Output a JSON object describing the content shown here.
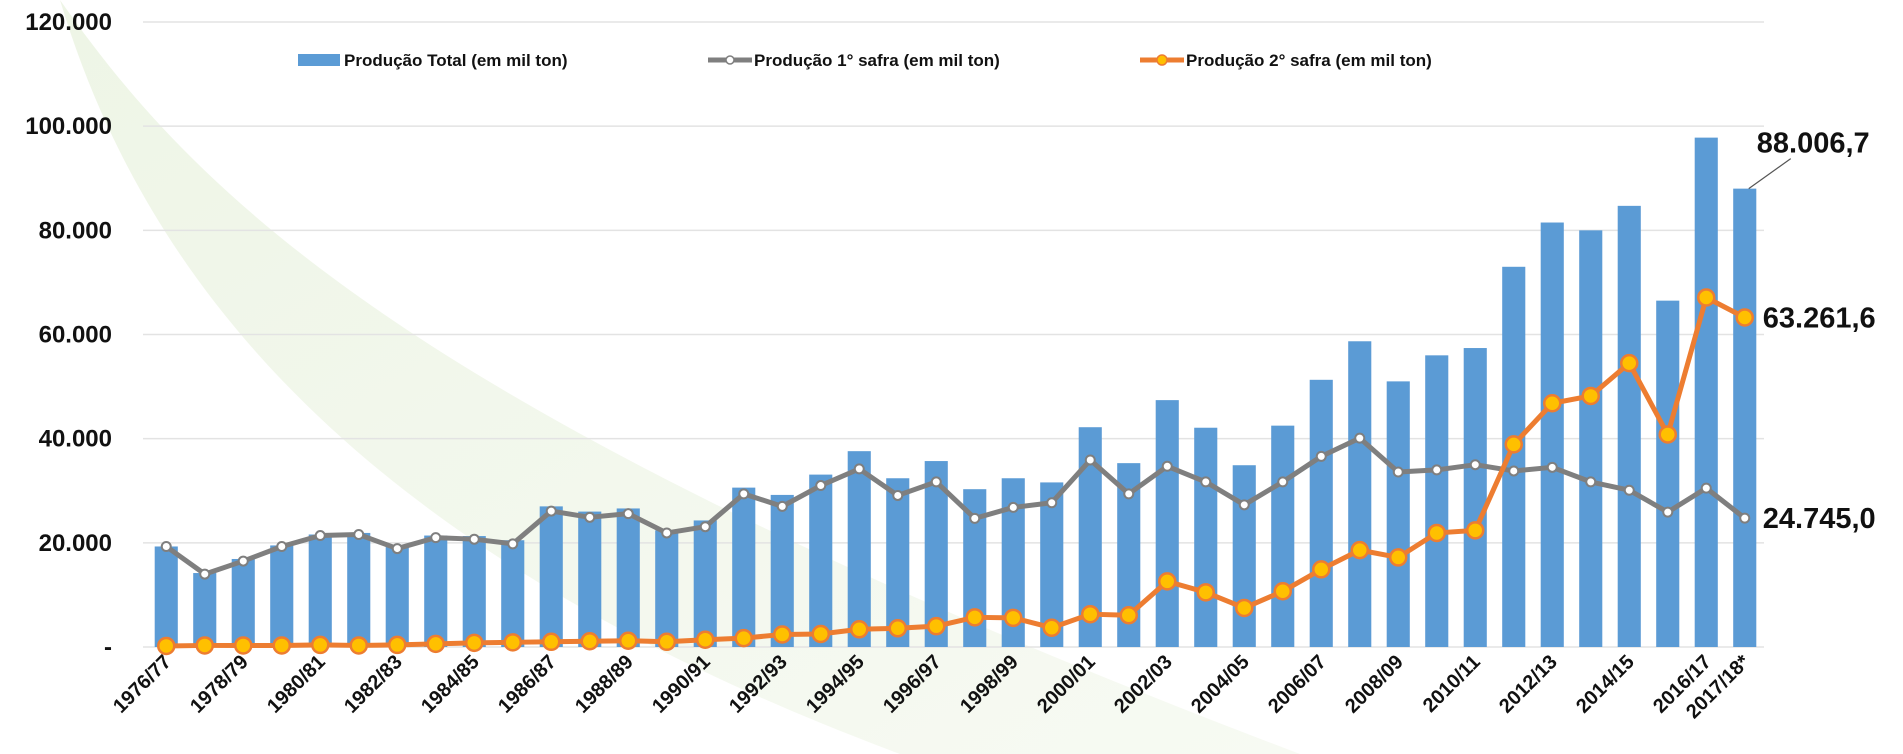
{
  "chart_data": {
    "type": "bar",
    "categories": [
      "1976/77",
      null,
      "1978/79",
      null,
      "1980/81",
      null,
      "1982/83",
      null,
      "1984/85",
      null,
      "1986/87",
      null,
      "1988/89",
      null,
      "1990/91",
      null,
      "1992/93",
      null,
      "1994/95",
      null,
      "1996/97",
      null,
      "1998/99",
      null,
      "2000/01",
      null,
      "2002/03",
      null,
      "2004/05",
      null,
      "2006/07",
      null,
      "2008/09",
      null,
      "2010/11",
      null,
      "2012/13",
      null,
      "2014/15",
      null,
      "2016/17",
      "2017/18*"
    ],
    "series": [
      {
        "name": "Produção Total (em mil ton)",
        "type": "bar",
        "color": "#5b9bd5",
        "values": [
          19300,
          14200,
          16900,
          19500,
          21600,
          21900,
          19200,
          21400,
          21300,
          20500,
          27000,
          26000,
          26600,
          22400,
          24300,
          30600,
          29200,
          33100,
          37600,
          32400,
          35700,
          30300,
          32400,
          31600,
          42200,
          35300,
          47400,
          42100,
          34900,
          42500,
          51300,
          58700,
          51000,
          56000,
          57400,
          73000,
          81500,
          80000,
          84700,
          66500,
          97800,
          88006.7
        ],
        "value_labels": [
          null,
          null,
          null,
          null,
          null,
          null,
          null,
          null,
          null,
          null,
          null,
          null,
          null,
          null,
          null,
          null,
          null,
          null,
          null,
          null,
          null,
          null,
          null,
          null,
          null,
          null,
          null,
          null,
          null,
          null,
          null,
          null,
          null,
          null,
          null,
          null,
          null,
          null,
          null,
          null,
          null,
          "88.006,7"
        ]
      },
      {
        "name": "Produção 1° safra (em mil ton)",
        "type": "line",
        "color": "#7f7f7f",
        "values": [
          19300,
          14000,
          16500,
          19300,
          21400,
          21600,
          18900,
          21000,
          20700,
          19800,
          26100,
          24900,
          25600,
          21900,
          23100,
          29400,
          27000,
          31000,
          34200,
          29100,
          31700,
          24700,
          26800,
          27700,
          35900,
          29400,
          34700,
          31700,
          27300,
          31700,
          36600,
          40100,
          33600,
          34000,
          35000,
          33800,
          34500,
          31700,
          30100,
          25900,
          30500,
          24745
        ],
        "value_labels": [
          null,
          null,
          null,
          null,
          null,
          null,
          null,
          null,
          null,
          null,
          null,
          null,
          null,
          null,
          null,
          null,
          null,
          null,
          null,
          null,
          null,
          null,
          null,
          null,
          null,
          null,
          null,
          null,
          null,
          null,
          null,
          null,
          null,
          null,
          null,
          null,
          null,
          null,
          null,
          null,
          null,
          "24.745,0"
        ]
      },
      {
        "name": "Produção 2° safra (em mil ton)",
        "type": "line",
        "color": "#ed7d31",
        "values": [
          200,
          300,
          300,
          300,
          400,
          300,
          400,
          600,
          800,
          900,
          1000,
          1100,
          1200,
          1000,
          1400,
          1700,
          2400,
          2500,
          3400,
          3600,
          4000,
          5700,
          5600,
          3700,
          6300,
          6100,
          12600,
          10500,
          7500,
          10700,
          14900,
          18600,
          17200,
          21900,
          22400,
          38900,
          46800,
          48200,
          54500,
          40800,
          67100,
          63261.6
        ],
        "value_labels": [
          null,
          null,
          null,
          null,
          null,
          null,
          null,
          null,
          null,
          null,
          null,
          null,
          null,
          null,
          null,
          null,
          null,
          null,
          null,
          null,
          null,
          null,
          null,
          null,
          null,
          null,
          null,
          null,
          null,
          null,
          null,
          null,
          null,
          null,
          null,
          null,
          null,
          null,
          null,
          null,
          null,
          "63.261,6"
        ]
      }
    ],
    "ylim": [
      0,
      120000
    ],
    "yticks": [
      {
        "value": 0,
        "label": "-"
      },
      {
        "value": 20000,
        "label": "20.000"
      },
      {
        "value": 40000,
        "label": "40.000"
      },
      {
        "value": 60000,
        "label": "60.000"
      },
      {
        "value": 80000,
        "label": "80.000"
      },
      {
        "value": 100000,
        "label": "100.000"
      },
      {
        "value": 120000,
        "label": "120.000"
      }
    ],
    "grid": true,
    "legend": "top"
  }
}
